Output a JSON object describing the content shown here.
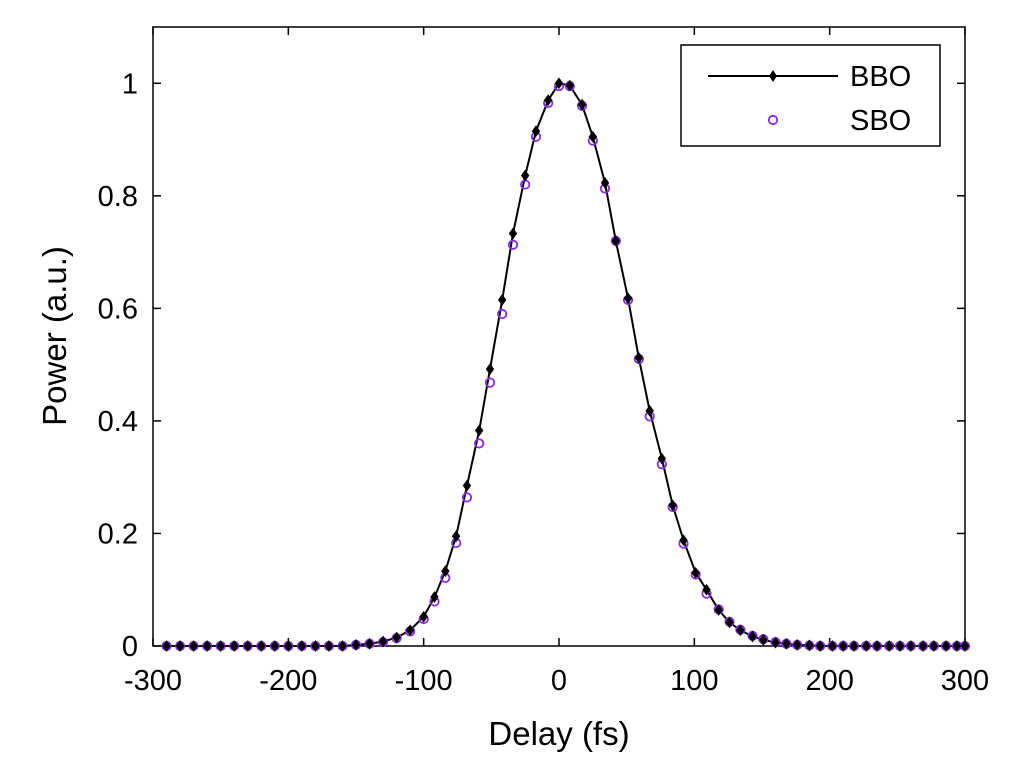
{
  "chart_data": {
    "type": "line",
    "title": "",
    "xlabel": "Delay (fs)",
    "ylabel": "Power (a.u.)",
    "xlim": [
      -300,
      300
    ],
    "ylim": [
      0,
      1.1
    ],
    "xticks": [
      -300,
      -200,
      -100,
      0,
      100,
      200,
      300
    ],
    "xtick_labels": [
      "-300",
      "-200",
      "-100",
      "0",
      "100",
      "200",
      "300"
    ],
    "yticks": [
      0,
      0.2,
      0.4,
      0.6,
      0.8,
      1
    ],
    "ytick_labels": [
      "0",
      "0.2",
      "0.4",
      "0.6",
      "0.8",
      "1"
    ],
    "grid": false,
    "legend_position": "top-right",
    "series": [
      {
        "name": "BBO",
        "style": "line with filled diamond markers",
        "color": "#000000",
        "x": [
          -290,
          -280,
          -270,
          -260,
          -250,
          -240,
          -230,
          -220,
          -210,
          -200,
          -190,
          -180,
          -170,
          -160,
          -150,
          -140,
          -130,
          -120,
          -110,
          -100,
          -92,
          -84,
          -76,
          -68,
          -59,
          -51,
          -42,
          -34,
          -25,
          -17,
          -8,
          0,
          8,
          17,
          25,
          34,
          42,
          51,
          59,
          67,
          76,
          84,
          92,
          101,
          109,
          118,
          126,
          134,
          143,
          151,
          160,
          168,
          176,
          185,
          193,
          202,
          210,
          218,
          227,
          235,
          244,
          252,
          260,
          269,
          277,
          286,
          294,
          300
        ],
        "y": [
          0,
          0,
          0,
          0,
          0,
          0,
          0,
          0,
          0,
          0,
          0,
          0,
          0,
          0,
          0.002,
          0.004,
          0.008,
          0.015,
          0.028,
          0.052,
          0.087,
          0.133,
          0.195,
          0.285,
          0.383,
          0.492,
          0.615,
          0.733,
          0.836,
          0.915,
          0.97,
          1.0,
          0.996,
          0.962,
          0.905,
          0.823,
          0.72,
          0.618,
          0.512,
          0.418,
          0.333,
          0.25,
          0.188,
          0.13,
          0.1,
          0.064,
          0.042,
          0.028,
          0.017,
          0.011,
          0.006,
          0.004,
          0.002,
          0.001,
          0,
          0,
          0,
          0,
          0,
          0,
          0,
          0,
          0,
          0,
          0,
          0,
          0,
          0
        ]
      },
      {
        "name": "SBO",
        "style": "open circle markers",
        "color": "#8a2be2",
        "x": [
          -290,
          -280,
          -270,
          -260,
          -250,
          -240,
          -230,
          -220,
          -210,
          -200,
          -190,
          -180,
          -170,
          -160,
          -150,
          -140,
          -130,
          -120,
          -110,
          -100,
          -92,
          -84,
          -76,
          -68,
          -59,
          -51,
          -42,
          -34,
          -25,
          -17,
          -8,
          0,
          8,
          17,
          25,
          34,
          42,
          51,
          59,
          67,
          76,
          84,
          92,
          101,
          109,
          118,
          126,
          134,
          143,
          151,
          160,
          168,
          176,
          185,
          193,
          202,
          210,
          218,
          227,
          235,
          244,
          252,
          260,
          269,
          277,
          286,
          294,
          300
        ],
        "y": [
          0,
          0,
          0,
          0,
          0,
          0,
          0,
          0,
          0,
          0,
          0,
          0,
          0,
          0,
          0.002,
          0.004,
          0.007,
          0.014,
          0.026,
          0.048,
          0.079,
          0.121,
          0.183,
          0.264,
          0.36,
          0.468,
          0.59,
          0.713,
          0.82,
          0.905,
          0.965,
          0.995,
          0.995,
          0.96,
          0.898,
          0.813,
          0.72,
          0.615,
          0.51,
          0.408,
          0.323,
          0.247,
          0.182,
          0.127,
          0.093,
          0.065,
          0.043,
          0.029,
          0.018,
          0.012,
          0.007,
          0.004,
          0.002,
          0.001,
          0,
          0,
          0,
          0,
          0,
          0,
          0,
          0,
          0,
          0,
          0,
          0,
          0,
          0
        ]
      }
    ]
  }
}
